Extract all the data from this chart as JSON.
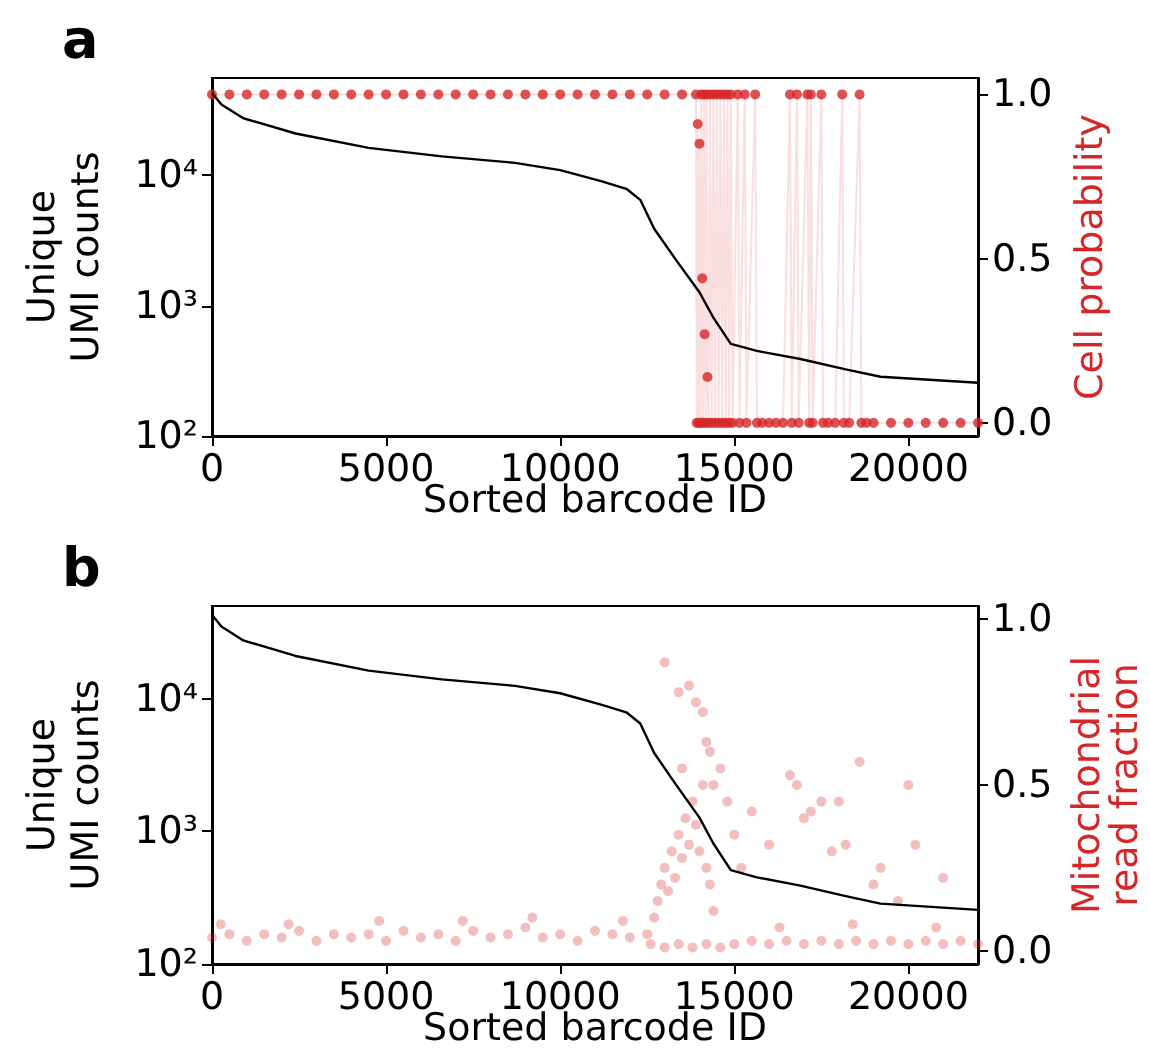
{
  "chart_data": [
    {
      "type": "line",
      "title": "a",
      "xlabel": "Sorted barcode ID",
      "ylabel": "Unique\nUMI counts",
      "y2label": "Cell probability",
      "log": "y",
      "grid": false,
      "xlim": [
        0,
        22000
      ],
      "xticks": [
        0,
        5000,
        10000,
        15000,
        20000
      ],
      "ylim": [
        100,
        56000
      ],
      "yticks": [
        {
          "value": 100,
          "label": "10²"
        },
        {
          "value": 1000,
          "label": "10³"
        },
        {
          "value": 10000,
          "label": "10⁴"
        }
      ],
      "y2lim": [
        -0.04,
        1.05
      ],
      "y2ticks": [
        {
          "value": 0,
          "label": "0.0"
        },
        {
          "value": 0.5,
          "label": "0.5"
        },
        {
          "value": 1,
          "label": "1.0"
        }
      ],
      "series": [
        {
          "color": "#000000",
          "marker": "none",
          "x": [
            0,
            270,
            900,
            2400,
            4500,
            6600,
            8700,
            10000,
            11200,
            11900,
            12300,
            12700,
            13300,
            14000,
            14400,
            14900,
            15650,
            16900,
            18200,
            19200,
            22000
          ],
          "values": [
            43000,
            35000,
            27500,
            21000,
            16300,
            14000,
            12500,
            11000,
            9000,
            7900,
            6500,
            3900,
            2300,
            1270,
            810,
            510,
            450,
            390,
            325,
            285,
            256
          ]
        },
        {
          "axis": "y2",
          "color": "#d62728",
          "marker": "circle",
          "x": [
            0,
            500,
            1000,
            1500,
            2000,
            2500,
            3000,
            3500,
            4000,
            4500,
            5000,
            5500,
            6000,
            6500,
            7000,
            7500,
            8000,
            8500,
            9000,
            9500,
            10000,
            10500,
            11000,
            11500,
            12000,
            12500,
            13000,
            13500,
            13900,
            13920,
            13950,
            13980,
            14000,
            14030,
            14050,
            14080,
            14100,
            14130,
            14150,
            14180,
            14200,
            14230,
            14260,
            14300,
            14350,
            14400,
            14450,
            14500,
            14550,
            14600,
            14650,
            14700,
            14750,
            14800,
            14850,
            14900,
            14950,
            15100,
            15150,
            15300,
            15350,
            15600,
            15650,
            15800,
            16000,
            16200,
            16400,
            16600,
            16650,
            16800,
            16850,
            17100,
            17150,
            17200,
            17250,
            17500,
            17550,
            17700,
            17900,
            18100,
            18150,
            18300,
            18600,
            18650,
            18800,
            19000,
            19500,
            20000,
            20500,
            21000,
            21500,
            22000
          ],
          "values": [
            1,
            1,
            1,
            1,
            1,
            1,
            1,
            1,
            1,
            1,
            1,
            1,
            1,
            1,
            1,
            1,
            1,
            1,
            1,
            1,
            1,
            1,
            1,
            1,
            1,
            1,
            1,
            1,
            1,
            0,
            0.91,
            0,
            0.85,
            0,
            1,
            0.44,
            0,
            1,
            0.27,
            0,
            1,
            0.14,
            0,
            1,
            0,
            1,
            0,
            1,
            0,
            1,
            0,
            1,
            0,
            1,
            0,
            1,
            0,
            1,
            0,
            1,
            0,
            1,
            0,
            0,
            0,
            0,
            0,
            1,
            0,
            1,
            0,
            1,
            0,
            1,
            0,
            1,
            0,
            0,
            0,
            1,
            0,
            0,
            1,
            0,
            0,
            0,
            0,
            0,
            0,
            0,
            0,
            0
          ]
        }
      ]
    },
    {
      "type": "scatter",
      "title": "b",
      "xlabel": "Sorted barcode ID",
      "ylabel": "Unique\nUMI counts",
      "y2label": "Mitochondrial\nread fraction",
      "log": "y",
      "grid": false,
      "xlim": [
        0,
        22000
      ],
      "xticks": [
        0,
        5000,
        10000,
        15000,
        20000
      ],
      "ylim": [
        100,
        50000
      ],
      "yticks": [
        {
          "value": 100,
          "label": "10²"
        },
        {
          "value": 1000,
          "label": "10³"
        },
        {
          "value": 10000,
          "label": "10⁴"
        }
      ],
      "y2lim": [
        -0.04,
        1.04
      ],
      "y2ticks": [
        {
          "value": 0,
          "label": "0.0"
        },
        {
          "value": 0.5,
          "label": "0.5"
        },
        {
          "value": 1,
          "label": "1.0"
        }
      ],
      "series": [
        {
          "type": "line",
          "color": "#000000",
          "marker": "none",
          "x": [
            0,
            270,
            900,
            2400,
            4500,
            6600,
            8700,
            10000,
            11200,
            11900,
            12300,
            12700,
            13300,
            14000,
            14400,
            14900,
            15650,
            16900,
            18200,
            19200,
            22000
          ],
          "values": [
            43000,
            35000,
            27500,
            21000,
            16300,
            14000,
            12500,
            11000,
            9000,
            7900,
            6500,
            3900,
            2300,
            1270,
            810,
            510,
            450,
            390,
            325,
            285,
            256
          ]
        },
        {
          "axis": "y2",
          "color": "#d62728",
          "marker": "circle",
          "x": [
            0,
            500,
            1000,
            1500,
            2000,
            2500,
            3000,
            3500,
            4000,
            4500,
            5000,
            5500,
            6000,
            6500,
            7000,
            7500,
            8000,
            8500,
            9000,
            9500,
            10000,
            10500,
            11000,
            11500,
            12000,
            250,
            2200,
            4800,
            7200,
            9200,
            11800,
            12500,
            12700,
            12800,
            12900,
            13000,
            13100,
            13200,
            13300,
            13400,
            13500,
            13600,
            13700,
            13800,
            13900,
            14000,
            14100,
            14200,
            14300,
            14400,
            13000,
            13400,
            13700,
            13900,
            14100,
            14200,
            14300,
            13500,
            14400,
            14600,
            14800,
            15000,
            15200,
            15500,
            16000,
            16600,
            16800,
            17000,
            17200,
            17500,
            17800,
            18000,
            18200,
            18600,
            19000,
            19200,
            19700,
            20000,
            20200,
            21000,
            12600,
            13000,
            13400,
            13800,
            14200,
            14600,
            15000,
            15500,
            16000,
            16500,
            17000,
            17500,
            18000,
            18500,
            19000,
            19500,
            20000,
            20500,
            21000,
            21500,
            22000,
            16300,
            18400,
            20800
          ],
          "values": [
            0.04,
            0.05,
            0.03,
            0.05,
            0.04,
            0.06,
            0.03,
            0.05,
            0.04,
            0.05,
            0.03,
            0.06,
            0.04,
            0.05,
            0.03,
            0.06,
            0.04,
            0.05,
            0.07,
            0.04,
            0.05,
            0.03,
            0.06,
            0.05,
            0.04,
            0.08,
            0.08,
            0.09,
            0.09,
            0.1,
            0.09,
            0.05,
            0.1,
            0.15,
            0.2,
            0.25,
            0.18,
            0.3,
            0.22,
            0.35,
            0.28,
            0.4,
            0.32,
            0.45,
            0.38,
            0.3,
            0.5,
            0.25,
            0.2,
            0.12,
            0.87,
            0.78,
            0.8,
            0.75,
            0.72,
            0.63,
            0.6,
            0.55,
            0.5,
            0.55,
            0.45,
            0.35,
            0.25,
            0.42,
            0.32,
            0.53,
            0.5,
            0.4,
            0.42,
            0.45,
            0.3,
            0.45,
            0.32,
            0.57,
            0.2,
            0.25,
            0.15,
            0.5,
            0.32,
            0.22,
            0.02,
            0.01,
            0.02,
            0.01,
            0.02,
            0.01,
            0.02,
            0.03,
            0.02,
            0.03,
            0.02,
            0.03,
            0.02,
            0.03,
            0.02,
            0.03,
            0.02,
            0.03,
            0.02,
            0.03,
            0.02,
            0.07,
            0.08,
            0.07
          ]
        }
      ]
    }
  ]
}
